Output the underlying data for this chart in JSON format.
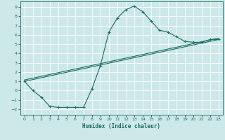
{
  "xlabel": "Humidex (Indice chaleur)",
  "bg_color": "#cce8e8",
  "line_color": "#1a6e64",
  "grid_color": "#ffffff",
  "xlim": [
    -0.5,
    23.5
  ],
  "ylim": [
    -2.6,
    9.6
  ],
  "xticks": [
    0,
    1,
    2,
    3,
    4,
    5,
    6,
    7,
    8,
    9,
    10,
    11,
    12,
    13,
    14,
    15,
    16,
    17,
    18,
    19,
    20,
    21,
    22,
    23
  ],
  "yticks": [
    -2,
    -1,
    0,
    1,
    2,
    3,
    4,
    5,
    6,
    7,
    8,
    9
  ],
  "main_x": [
    0,
    1,
    2,
    3,
    4,
    5,
    6,
    7,
    8,
    9,
    10,
    11,
    12,
    13,
    14,
    15,
    16,
    17,
    18,
    19,
    20,
    21,
    22,
    23
  ],
  "main_y": [
    1,
    0,
    -0.7,
    -1.7,
    -1.8,
    -1.8,
    -1.8,
    -1.8,
    0.2,
    2.7,
    6.3,
    7.8,
    8.7,
    9.1,
    8.5,
    7.5,
    6.5,
    6.3,
    5.8,
    5.3,
    5.2,
    5.2,
    5.5,
    5.5
  ],
  "line1_x": [
    0,
    23
  ],
  "line1_y": [
    1,
    5.5
  ],
  "line2_x": [
    0,
    23
  ],
  "line2_y": [
    1,
    5.5
  ],
  "tick_fontsize": 4.5,
  "xlabel_fontsize": 5.5
}
